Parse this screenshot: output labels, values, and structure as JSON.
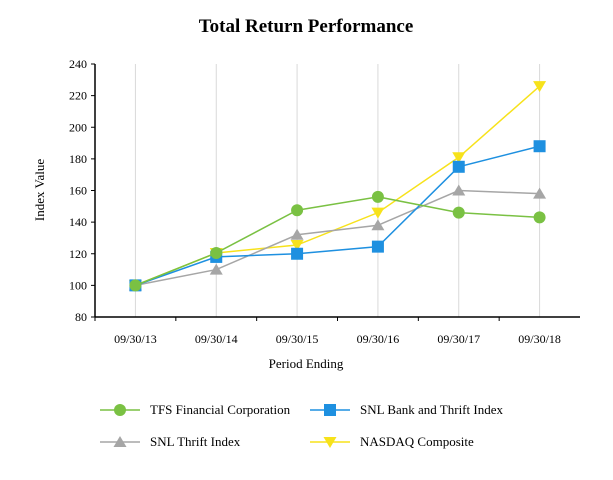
{
  "chart_data": {
    "type": "line",
    "title": "Total Return Performance",
    "xlabel": "Period Ending",
    "ylabel": "Index Value",
    "categories": [
      "09/30/13",
      "09/30/14",
      "09/30/15",
      "09/30/16",
      "09/30/17",
      "09/30/18"
    ],
    "ylim": [
      80,
      240
    ],
    "yticks": [
      80,
      100,
      120,
      140,
      160,
      180,
      200,
      220,
      240
    ],
    "grid": "vertical",
    "legend_position": "bottom",
    "series": [
      {
        "name": "TFS Financial Corporation",
        "marker": "circle",
        "color": "#7ac143",
        "values": [
          100,
          120.5,
          147.5,
          156,
          146,
          143
        ]
      },
      {
        "name": "SNL Bank and Thrift Index",
        "marker": "square",
        "color": "#1e90e0",
        "values": [
          100,
          118,
          120,
          124.5,
          175,
          188
        ]
      },
      {
        "name": "SNL Thrift Index",
        "marker": "triangle-up",
        "color": "#a6a6a6",
        "values": [
          100,
          110,
          132,
          138,
          160,
          158
        ]
      },
      {
        "name": "NASDAQ Composite",
        "marker": "triangle-down",
        "color": "#f7e21b",
        "values": [
          100,
          120.5,
          125.5,
          146,
          181,
          226
        ]
      }
    ]
  }
}
